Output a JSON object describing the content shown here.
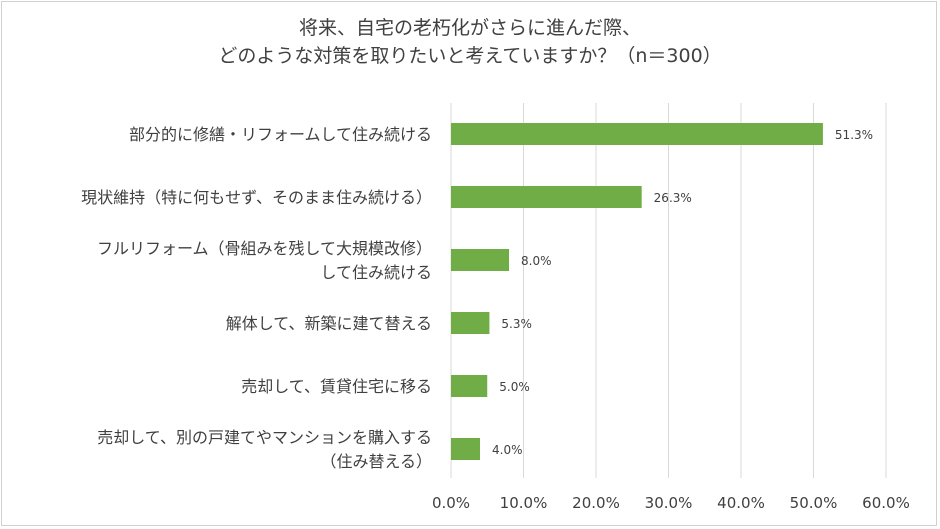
{
  "chart_data": {
    "type": "bar",
    "orientation": "horizontal",
    "title_lines": [
      "将来、自宅の老朽化がさらに進んだ際、",
      "どのような対策を取りたいと考えていますか？（n＝300）"
    ],
    "categories": [
      [
        "部分的に修繕・リフォームして住み続ける"
      ],
      [
        "現状維持（特に何もせず、そのまま住み続ける）"
      ],
      [
        "フルリフォーム（骨組みを残して大規模改修）",
        "して住み続ける"
      ],
      [
        "解体して、新築に建て替える"
      ],
      [
        "売却して、賃貸住宅に移る"
      ],
      [
        "売却して、別の戸建てやマンションを購入する",
        "（住み替える）"
      ]
    ],
    "values": [
      51.3,
      26.3,
      8.0,
      5.3,
      5.0,
      4.0
    ],
    "data_labels": [
      "51.3%",
      "26.3%",
      "8.0%",
      "5.3%",
      "5.0%",
      "4.0%"
    ],
    "xlim": [
      0,
      60
    ],
    "x_ticks": [
      "0.0%",
      "10.0%",
      "20.0%",
      "30.0%",
      "40.0%",
      "50.0%",
      "60.0%"
    ],
    "gridlines": true,
    "bar_color": "#70ad47",
    "grid_color": "#d9d9d9"
  }
}
